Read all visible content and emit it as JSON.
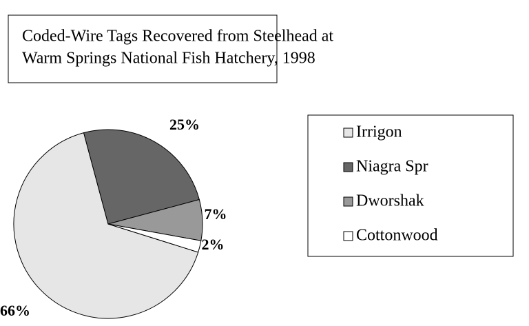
{
  "chart_data": {
    "type": "pie",
    "title": [
      "Coded-Wire Tags Recovered from Steelhead at",
      "Warm Springs National Fish Hatchery, 1998"
    ],
    "categories": [
      "Irrigon",
      "Niagra Spr",
      "Dworshak",
      "Cottonwood"
    ],
    "values": [
      66,
      25,
      7,
      2
    ],
    "value_labels": [
      "66%",
      "25%",
      "7%",
      "2%"
    ],
    "colors": [
      "#e6e6e6",
      "#666666",
      "#999999",
      "#ffffff"
    ],
    "legend": "right"
  }
}
